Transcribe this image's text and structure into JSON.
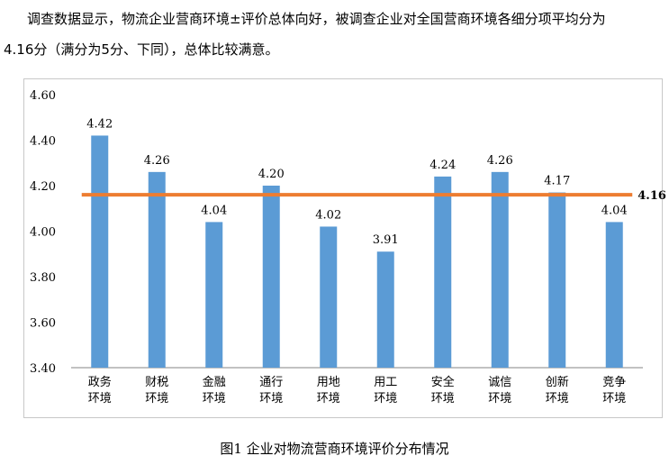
{
  "paragraph": {
    "line1": "调查数据显示，物流企业营商环境±评价总体向好，被调查企业对全国营商环境各细分项平均分为",
    "line2": "4.16分（满分为5分、下同），总体比较满意。"
  },
  "caption": "图1 企业对物流营商环境评价分布情况",
  "colors": {
    "bar": "#5b9bd5",
    "avg_line": "#ed7d31",
    "axis": "#868686",
    "text": "#000000"
  },
  "chart_data": {
    "type": "bar",
    "categories": [
      "政务环境",
      "财税环境",
      "金融环境",
      "通行环境",
      "用地环境",
      "用工环境",
      "安全环境",
      "诚信环境",
      "创新环境",
      "竞争环境"
    ],
    "category_lines": [
      [
        "政务",
        "环境"
      ],
      [
        "财税",
        "环境"
      ],
      [
        "金融",
        "环境"
      ],
      [
        "通行",
        "环境"
      ],
      [
        "用地",
        "环境"
      ],
      [
        "用工",
        "环境"
      ],
      [
        "安全",
        "环境"
      ],
      [
        "诚信",
        "环境"
      ],
      [
        "创新",
        "环境"
      ],
      [
        "竞争",
        "环境"
      ]
    ],
    "values": [
      4.42,
      4.26,
      4.04,
      4.2,
      4.02,
      3.91,
      4.24,
      4.26,
      4.17,
      4.04
    ],
    "value_labels": [
      "4.42",
      "4.26",
      "4.04",
      "4.20",
      "4.02",
      "3.91",
      "4.24",
      "4.26",
      "4.17",
      "4.04"
    ],
    "ylim": [
      3.4,
      4.6
    ],
    "yticks": [
      "3.40",
      "3.60",
      "3.80",
      "4.00",
      "4.20",
      "4.40",
      "4.60"
    ],
    "average": {
      "value": 4.16,
      "label": "4.16"
    },
    "grid": false,
    "title": "",
    "xlabel": "",
    "ylabel": ""
  }
}
